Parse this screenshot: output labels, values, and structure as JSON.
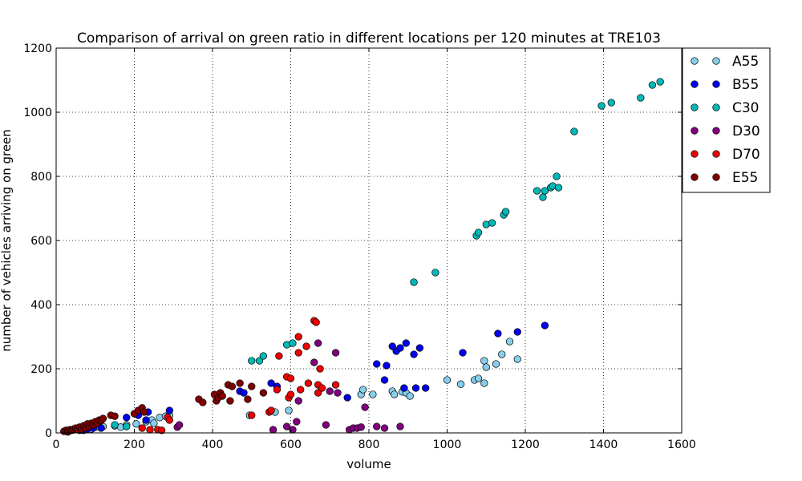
{
  "chart_data": {
    "type": "scatter",
    "title": "Comparison of arrival on green ratio in different locations per 120 minutes at TRE103",
    "xlabel": "volume",
    "ylabel": "number of vehicles arriving on green",
    "xlim": [
      0,
      1600
    ],
    "ylim": [
      0,
      1200
    ],
    "xticks": [
      "0",
      "200",
      "400",
      "600",
      "800",
      "1000",
      "1200",
      "1400",
      "1600"
    ],
    "yticks": [
      "0",
      "200",
      "400",
      "600",
      "800",
      "1000",
      "1200"
    ],
    "grid": true,
    "legend_position": "outside-top-right",
    "series": [
      {
        "name": "A55",
        "color": "#87ceeb",
        "points": [
          [
            30,
            3
          ],
          [
            60,
            8
          ],
          [
            90,
            12
          ],
          [
            100,
            18
          ],
          [
            120,
            20
          ],
          [
            150,
            22
          ],
          [
            165,
            18
          ],
          [
            180,
            25
          ],
          [
            205,
            28
          ],
          [
            230,
            35
          ],
          [
            245,
            40
          ],
          [
            250,
            30
          ],
          [
            265,
            48
          ],
          [
            280,
            52
          ],
          [
            290,
            55
          ],
          [
            495,
            55
          ],
          [
            560,
            65
          ],
          [
            595,
            70
          ],
          [
            780,
            120
          ],
          [
            785,
            135
          ],
          [
            810,
            120
          ],
          [
            860,
            130
          ],
          [
            865,
            120
          ],
          [
            885,
            128
          ],
          [
            895,
            125
          ],
          [
            905,
            115
          ],
          [
            1000,
            165
          ],
          [
            1035,
            152
          ],
          [
            1070,
            165
          ],
          [
            1080,
            170
          ],
          [
            1095,
            225
          ],
          [
            1100,
            205
          ],
          [
            1095,
            155
          ],
          [
            1125,
            215
          ],
          [
            1140,
            245
          ],
          [
            1160,
            285
          ],
          [
            1180,
            230
          ]
        ]
      },
      {
        "name": "B55",
        "color": "#0000ee",
        "points": [
          [
            70,
            8
          ],
          [
            80,
            12
          ],
          [
            95,
            15
          ],
          [
            115,
            15
          ],
          [
            180,
            48
          ],
          [
            210,
            55
          ],
          [
            230,
            40
          ],
          [
            235,
            65
          ],
          [
            290,
            70
          ],
          [
            470,
            130
          ],
          [
            480,
            125
          ],
          [
            550,
            155
          ],
          [
            565,
            145
          ],
          [
            745,
            110
          ],
          [
            820,
            215
          ],
          [
            840,
            165
          ],
          [
            845,
            210
          ],
          [
            860,
            270
          ],
          [
            870,
            255
          ],
          [
            880,
            265
          ],
          [
            890,
            140
          ],
          [
            895,
            280
          ],
          [
            915,
            245
          ],
          [
            920,
            140
          ],
          [
            930,
            265
          ],
          [
            945,
            140
          ],
          [
            1040,
            250
          ],
          [
            1130,
            310
          ],
          [
            1180,
            315
          ],
          [
            1250,
            335
          ]
        ]
      },
      {
        "name": "C30",
        "color": "#00b8b8",
        "points": [
          [
            150,
            25
          ],
          [
            180,
            20
          ],
          [
            500,
            225
          ],
          [
            520,
            225
          ],
          [
            530,
            240
          ],
          [
            590,
            275
          ],
          [
            605,
            280
          ],
          [
            915,
            470
          ],
          [
            970,
            500
          ],
          [
            1075,
            615
          ],
          [
            1080,
            625
          ],
          [
            1100,
            650
          ],
          [
            1115,
            655
          ],
          [
            1145,
            680
          ],
          [
            1150,
            690
          ],
          [
            1230,
            755
          ],
          [
            1245,
            735
          ],
          [
            1250,
            755
          ],
          [
            1265,
            765
          ],
          [
            1270,
            770
          ],
          [
            1280,
            800
          ],
          [
            1285,
            765
          ],
          [
            1325,
            940
          ],
          [
            1395,
            1020
          ],
          [
            1420,
            1030
          ],
          [
            1495,
            1045
          ],
          [
            1525,
            1085
          ],
          [
            1545,
            1095
          ]
        ]
      },
      {
        "name": "D30",
        "color": "#800080",
        "points": [
          [
            310,
            18
          ],
          [
            315,
            25
          ],
          [
            555,
            10
          ],
          [
            590,
            20
          ],
          [
            605,
            10
          ],
          [
            615,
            35
          ],
          [
            620,
            100
          ],
          [
            660,
            220
          ],
          [
            670,
            280
          ],
          [
            690,
            25
          ],
          [
            700,
            130
          ],
          [
            715,
            250
          ],
          [
            720,
            125
          ],
          [
            750,
            10
          ],
          [
            760,
            15
          ],
          [
            770,
            15
          ],
          [
            780,
            18
          ],
          [
            790,
            80
          ],
          [
            820,
            20
          ],
          [
            840,
            15
          ],
          [
            880,
            20
          ]
        ]
      },
      {
        "name": "D70",
        "color": "#ee0000",
        "points": [
          [
            220,
            15
          ],
          [
            240,
            10
          ],
          [
            260,
            10
          ],
          [
            270,
            8
          ],
          [
            285,
            48
          ],
          [
            290,
            40
          ],
          [
            500,
            55
          ],
          [
            545,
            65
          ],
          [
            550,
            70
          ],
          [
            565,
            135
          ],
          [
            570,
            240
          ],
          [
            590,
            175
          ],
          [
            595,
            110
          ],
          [
            600,
            170
          ],
          [
            600,
            120
          ],
          [
            620,
            300
          ],
          [
            620,
            250
          ],
          [
            625,
            135
          ],
          [
            640,
            270
          ],
          [
            645,
            155
          ],
          [
            660,
            350
          ],
          [
            665,
            345
          ],
          [
            670,
            150
          ],
          [
            670,
            125
          ],
          [
            675,
            200
          ],
          [
            680,
            140
          ],
          [
            715,
            150
          ]
        ]
      },
      {
        "name": "E55",
        "color": "#800000",
        "points": [
          [
            20,
            5
          ],
          [
            25,
            8
          ],
          [
            30,
            5
          ],
          [
            35,
            10
          ],
          [
            40,
            8
          ],
          [
            45,
            12
          ],
          [
            50,
            15
          ],
          [
            55,
            10
          ],
          [
            60,
            18
          ],
          [
            65,
            12
          ],
          [
            70,
            22
          ],
          [
            75,
            15
          ],
          [
            80,
            28
          ],
          [
            85,
            20
          ],
          [
            90,
            30
          ],
          [
            95,
            25
          ],
          [
            100,
            35
          ],
          [
            105,
            30
          ],
          [
            110,
            40
          ],
          [
            115,
            38
          ],
          [
            120,
            45
          ],
          [
            140,
            55
          ],
          [
            150,
            52
          ],
          [
            200,
            60
          ],
          [
            210,
            70
          ],
          [
            220,
            78
          ],
          [
            225,
            65
          ],
          [
            365,
            105
          ],
          [
            375,
            95
          ],
          [
            405,
            120
          ],
          [
            410,
            100
          ],
          [
            415,
            110
          ],
          [
            420,
            125
          ],
          [
            425,
            115
          ],
          [
            440,
            150
          ],
          [
            445,
            100
          ],
          [
            450,
            145
          ],
          [
            470,
            155
          ],
          [
            490,
            105
          ],
          [
            500,
            145
          ],
          [
            530,
            125
          ]
        ]
      }
    ]
  }
}
